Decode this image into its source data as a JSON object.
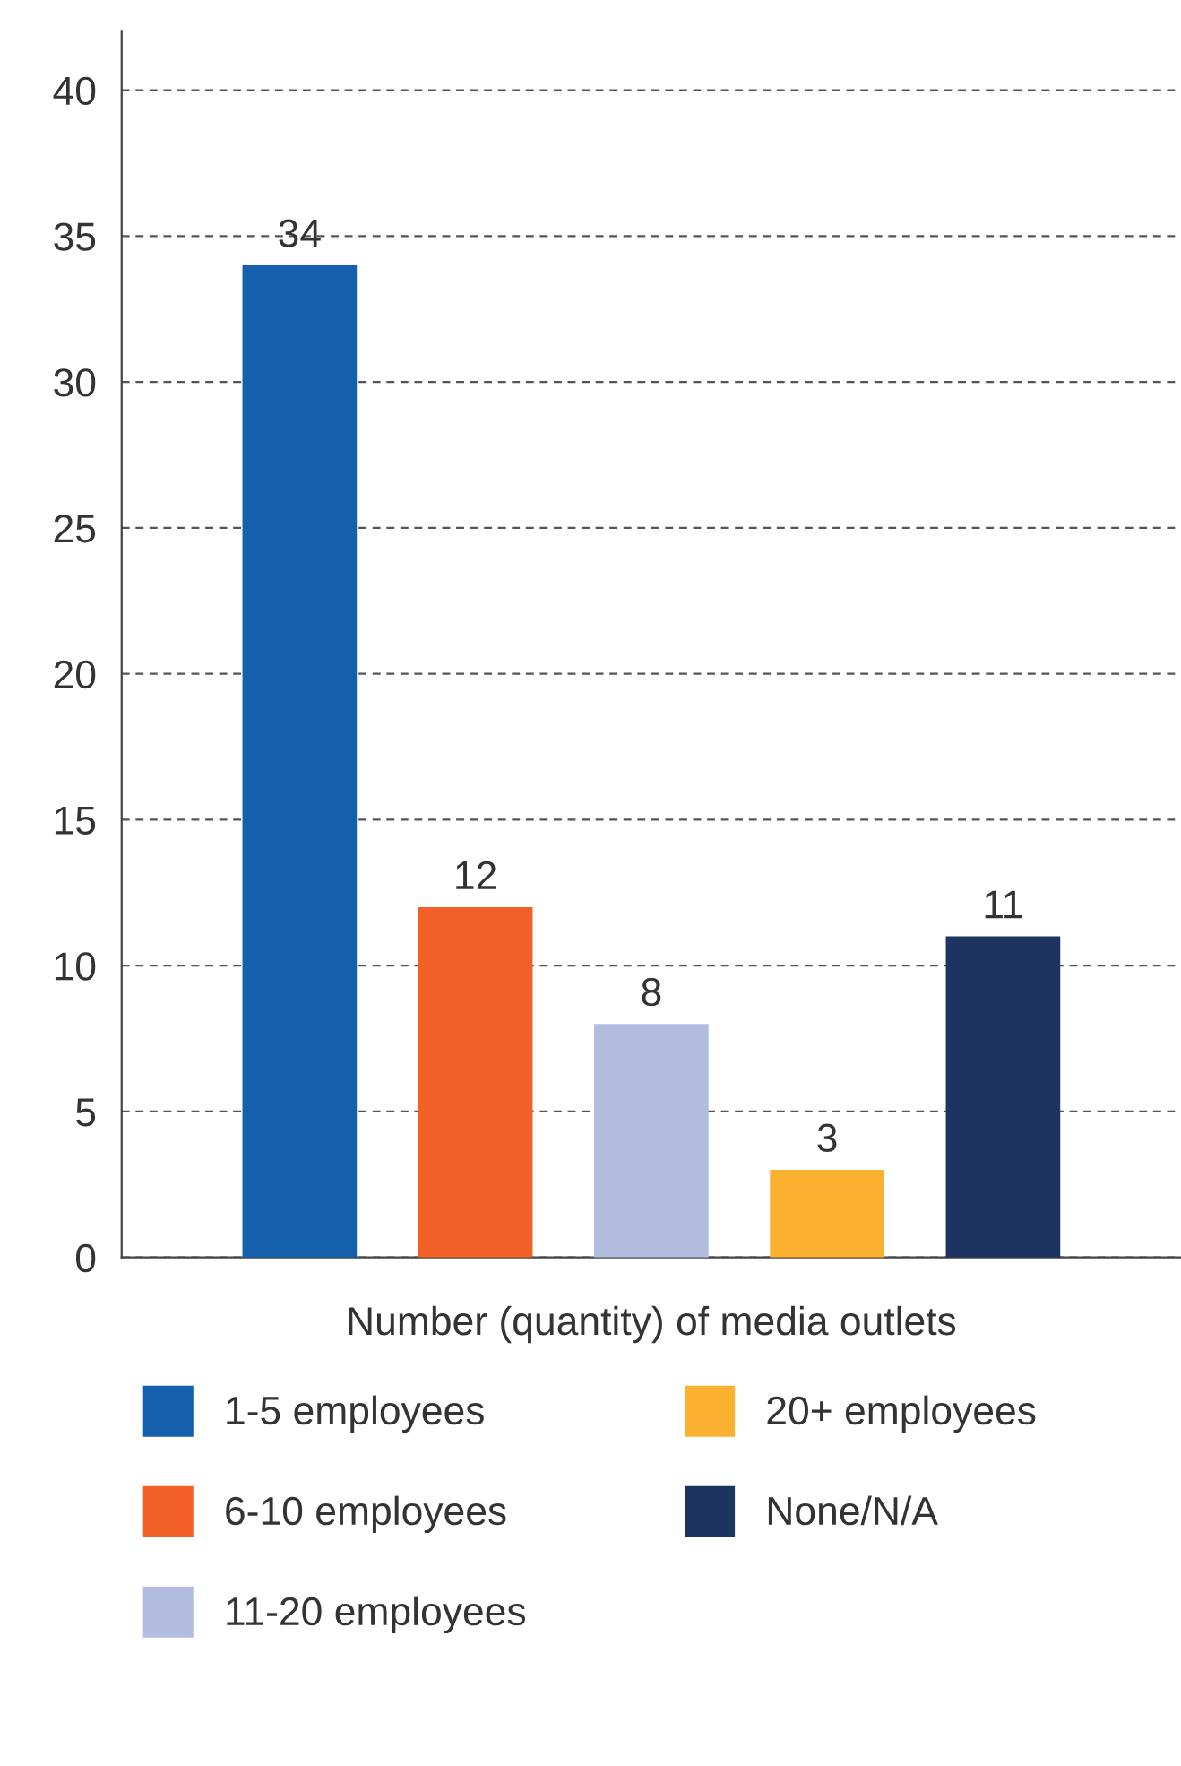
{
  "chart_data": {
    "type": "bar",
    "xlabel": "Number (quantity) of media outlets",
    "categories": [
      null
    ],
    "series": [
      {
        "name": "1-5 employees",
        "color": "#1560ac",
        "values": [
          34
        ]
      },
      {
        "name": "6-10 employees",
        "color": "#f26127",
        "values": [
          12
        ]
      },
      {
        "name": "11-20 employees",
        "color": "#b1bcdf",
        "values": [
          8
        ]
      },
      {
        "name": "20+ employees",
        "color": "#fbb030",
        "values": [
          3
        ]
      },
      {
        "name": "None/N/A",
        "color": "#1d3461",
        "values": [
          11
        ]
      }
    ],
    "ylim": [
      0,
      42
    ],
    "yticks": [
      0,
      5,
      10,
      15,
      20,
      25,
      30,
      35,
      40
    ],
    "grid": "y",
    "data_labels": true,
    "legend": "bottom"
  }
}
